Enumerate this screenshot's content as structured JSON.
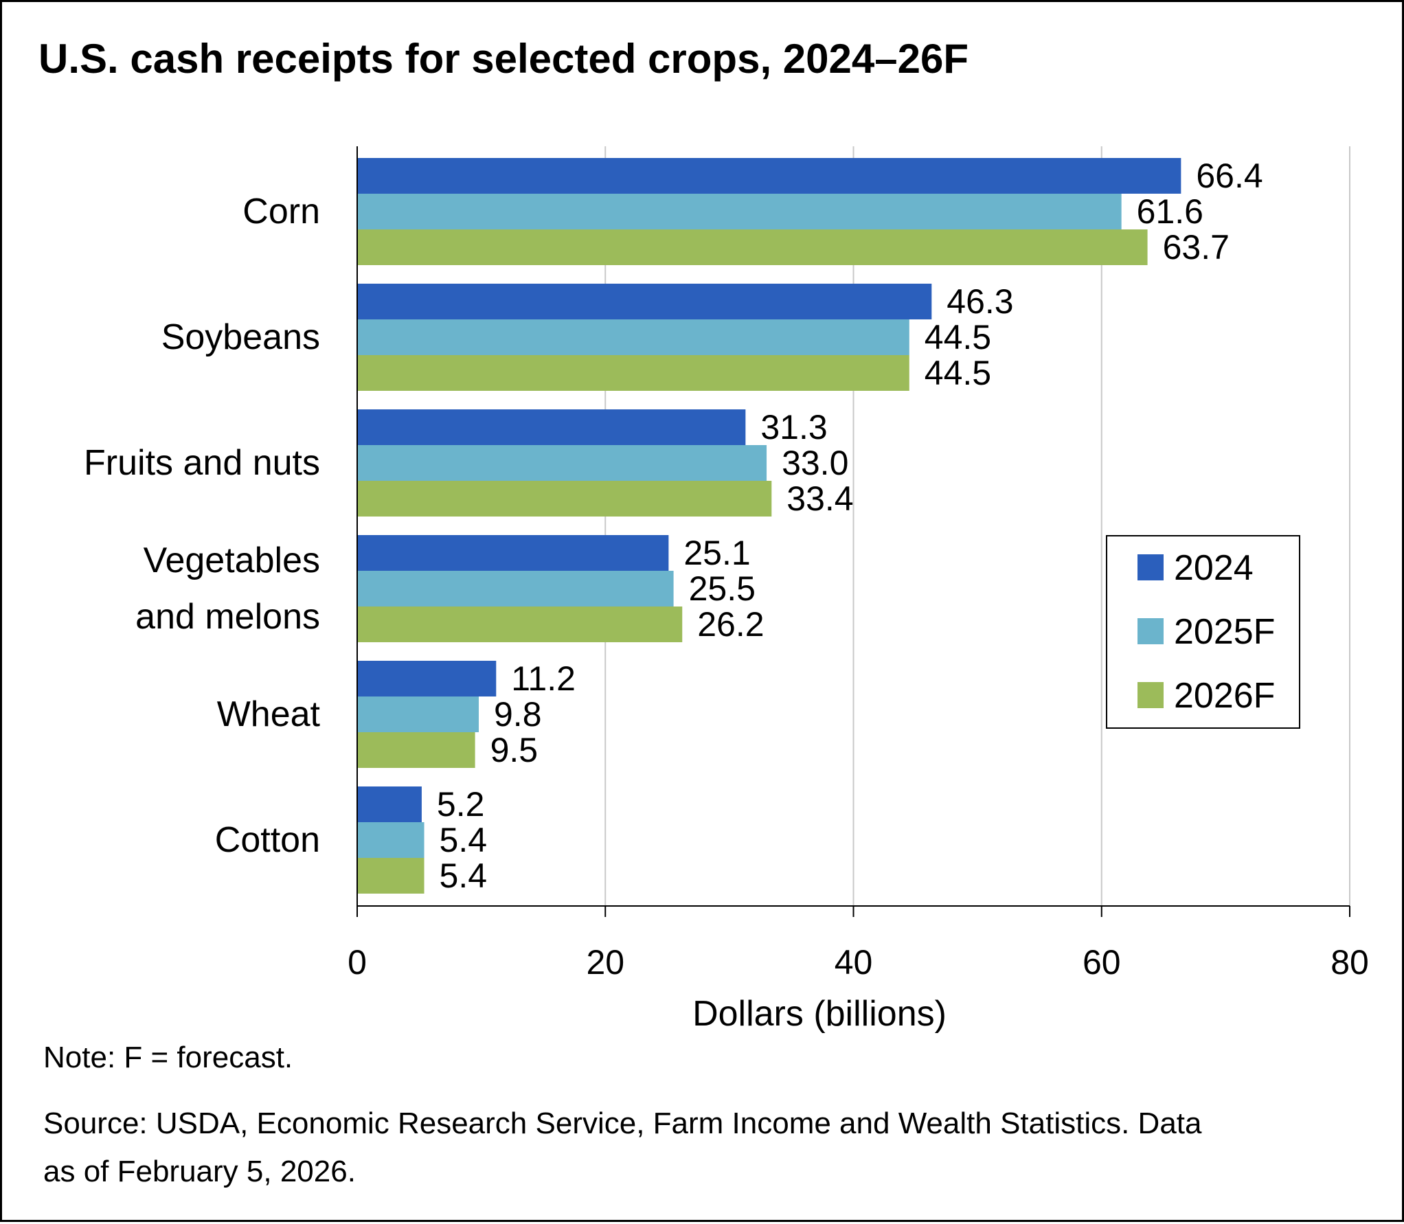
{
  "chart_data": {
    "type": "bar",
    "orientation": "horizontal",
    "title": "U.S. cash receipts for selected crops, 2024–26F",
    "xlabel": "Dollars (billions)",
    "ylabel": "",
    "xlim": [
      0,
      80
    ],
    "x_ticks": [
      "0",
      "20",
      "40",
      "60",
      "80"
    ],
    "grid": "vertical",
    "legend_position": "right",
    "categories": [
      [
        "Corn"
      ],
      [
        "Soybeans"
      ],
      [
        "Fruits and nuts"
      ],
      [
        "Vegetables",
        "and melons"
      ],
      [
        "Wheat"
      ],
      [
        "Cotton"
      ]
    ],
    "series": [
      {
        "name": "2024",
        "color": "#2b5fbc",
        "values": [
          66.4,
          46.3,
          31.3,
          25.1,
          11.2,
          5.2
        ],
        "labels": [
          "66.4",
          "46.3",
          "31.3",
          "25.1",
          "11.2",
          "5.2"
        ]
      },
      {
        "name": "2025F",
        "color": "#6bb4cc",
        "values": [
          61.6,
          44.5,
          33.0,
          25.5,
          9.8,
          5.4
        ],
        "labels": [
          "61.6",
          "44.5",
          "33.0",
          "25.5",
          "9.8",
          "5.4"
        ]
      },
      {
        "name": "2026F",
        "color": "#9cbb5a",
        "values": [
          63.7,
          44.5,
          33.4,
          26.2,
          9.5,
          5.4
        ],
        "labels": [
          "63.7",
          "44.5",
          "33.4",
          "26.2",
          "9.5",
          "5.4"
        ]
      }
    ],
    "note": "Note: F = forecast.",
    "source_lines": [
      "Source: USDA, Economic Research Service, Farm Income and Wealth Statistics. Data",
      "as of February 5, 2026."
    ]
  }
}
